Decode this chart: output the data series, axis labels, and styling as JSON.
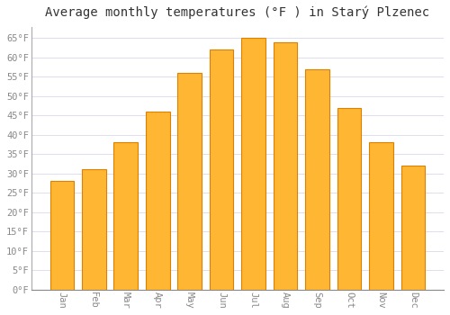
{
  "title": "Average monthly temperatures (°F ) in Starý Plzenec",
  "months": [
    "Jan",
    "Feb",
    "Mar",
    "Apr",
    "May",
    "Jun",
    "Jul",
    "Aug",
    "Sep",
    "Oct",
    "Nov",
    "Dec"
  ],
  "values": [
    28,
    31,
    38,
    46,
    56,
    62,
    65,
    64,
    57,
    47,
    38,
    32
  ],
  "bar_color": "#FFB733",
  "bar_edge_color": "#E08000",
  "background_color": "#FFFFFF",
  "plot_bg_color": "#FFFFFF",
  "ylim": [
    0,
    68
  ],
  "yticks": [
    0,
    5,
    10,
    15,
    20,
    25,
    30,
    35,
    40,
    45,
    50,
    55,
    60,
    65
  ],
  "ytick_labels": [
    "0°F",
    "5°F",
    "10°F",
    "15°F",
    "20°F",
    "25°F",
    "30°F",
    "35°F",
    "40°F",
    "45°F",
    "50°F",
    "55°F",
    "60°F",
    "65°F"
  ],
  "title_fontsize": 10,
  "tick_fontsize": 7.5,
  "grid_color": "#DDDDEE",
  "bar_width": 0.75,
  "tick_color": "#888888"
}
